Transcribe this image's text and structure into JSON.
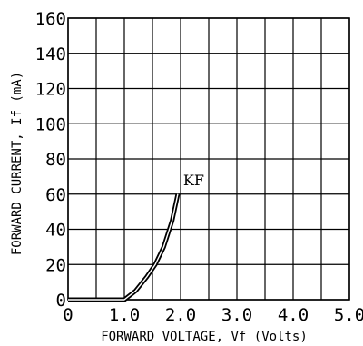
{
  "chart_data": {
    "type": "line",
    "title": "",
    "xlabel": "FORWARD VOLTAGE, Vf (Volts)",
    "ylabel": "FORWARD CURRENT, If (mA)",
    "xlim": [
      0,
      5.0
    ],
    "ylim": [
      0,
      160
    ],
    "grid": true,
    "x_ticks": [
      "0",
      "1.0",
      "2.0",
      "3.0",
      "4.0",
      "5.0"
    ],
    "y_ticks": [
      "0",
      "20",
      "40",
      "60",
      "80",
      "100",
      "120",
      "140",
      "160"
    ],
    "x_tick_values": [
      0,
      1.0,
      2.0,
      3.0,
      4.0,
      5.0
    ],
    "y_tick_values": [
      0,
      20,
      40,
      60,
      80,
      100,
      120,
      140,
      160
    ],
    "series": [
      {
        "name": "KF",
        "x": [
          0,
          0.5,
          1.0,
          1.2,
          1.4,
          1.55,
          1.7,
          1.85,
          1.95
        ],
        "y": [
          0,
          0,
          0,
          5,
          13,
          20,
          30,
          45,
          60
        ]
      }
    ],
    "colors": {
      "line": "#000000",
      "grid": "#000000",
      "background": "#ffffff"
    }
  }
}
